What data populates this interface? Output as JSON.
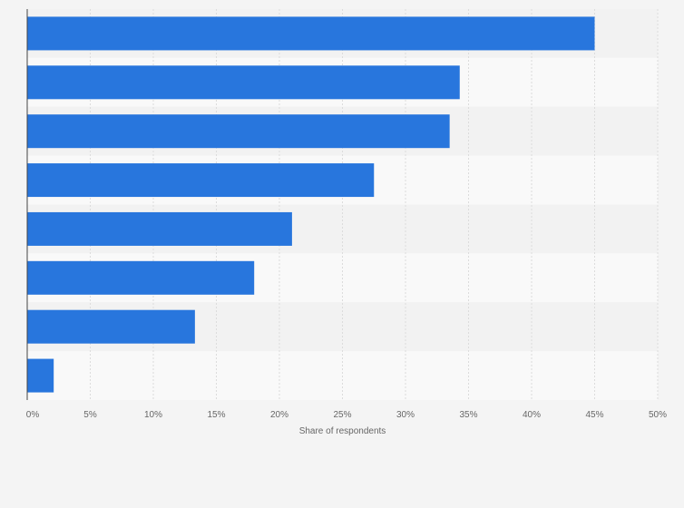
{
  "chart_data": {
    "type": "bar",
    "orientation": "horizontal",
    "categories": [
      "",
      "",
      "",
      "",
      "",
      "",
      "",
      ""
    ],
    "values": [
      45.0,
      34.3,
      33.5,
      27.5,
      21.0,
      18.0,
      13.3,
      2.1
    ],
    "xlabel": "Share of respondents",
    "ylabel": "",
    "xlim": [
      0,
      50
    ],
    "x_ticks": [
      "0%",
      "5%",
      "10%",
      "15%",
      "20%",
      "25%",
      "30%",
      "35%",
      "40%",
      "45%",
      "50%"
    ],
    "grid": true,
    "bar_color": "#2876dd",
    "band_colors": [
      "#f2f2f2",
      "#f9f9f9"
    ]
  }
}
